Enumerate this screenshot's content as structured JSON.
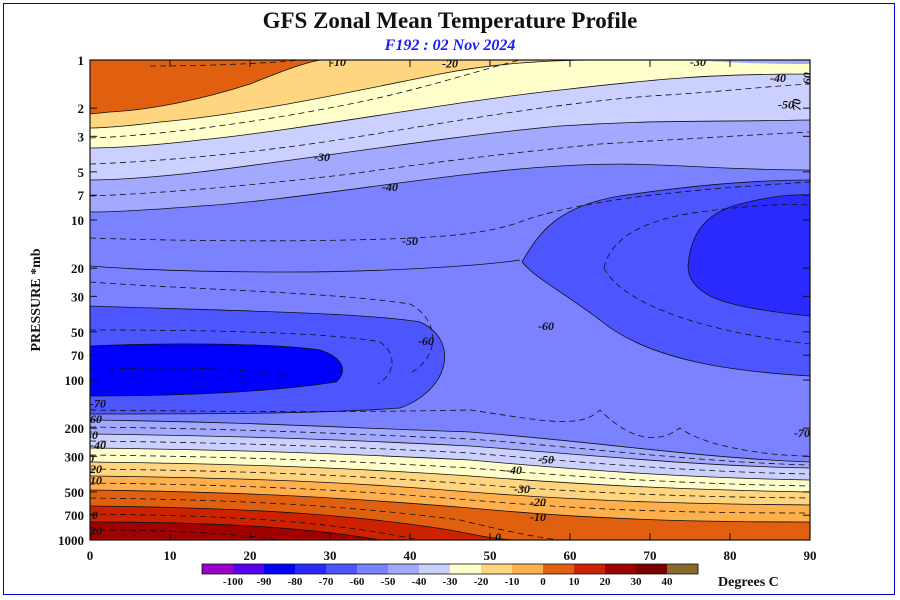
{
  "header": {
    "title": "GFS Zonal Mean Temperature Profile",
    "subtitle": "F192 : 02 Nov 2024"
  },
  "chart_data": {
    "type": "contour",
    "title": "GFS Zonal Mean Temperature Profile",
    "subtitle": "F192 : 02 Nov 2024",
    "xlabel": "",
    "ylabel": "PRESSURE *mb",
    "xlim": [
      0,
      90
    ],
    "ylim": [
      1000,
      1
    ],
    "y_scale": "log",
    "x_ticks": [
      "0",
      "10",
      "20",
      "30",
      "40",
      "50",
      "60",
      "70",
      "80",
      "90"
    ],
    "y_ticks": [
      {
        "p": 1,
        "label": "1"
      },
      {
        "p": 2,
        "label": "2"
      },
      {
        "p": 3,
        "label": "3"
      },
      {
        "p": 5,
        "label": "5"
      },
      {
        "p": 7,
        "label": "7"
      },
      {
        "p": 10,
        "label": "10"
      },
      {
        "p": 20,
        "label": "20"
      },
      {
        "p": 30,
        "label": "30"
      },
      {
        "p": 50,
        "label": "50"
      },
      {
        "p": 70,
        "label": "70"
      },
      {
        "p": 100,
        "label": "100"
      },
      {
        "p": 200,
        "label": "200"
      },
      {
        "p": 300,
        "label": "300"
      },
      {
        "p": 500,
        "label": "500"
      },
      {
        "p": 700,
        "label": "700"
      },
      {
        "p": 1000,
        "label": "1000"
      }
    ],
    "colorbar": {
      "units": "Degrees C",
      "labels": [
        "-100",
        "-90",
        "-80",
        "-70",
        "-60",
        "-50",
        "-40",
        "-30",
        "-20",
        "-10",
        "0",
        "10",
        "20",
        "30",
        "40"
      ],
      "colors": [
        "#9900cc",
        "#5500ee",
        "#0000ff",
        "#2a2aff",
        "#4d55ff",
        "#7a82ff",
        "#a3a9ff",
        "#ccd0ff",
        "#ffffcc",
        "#ffd580",
        "#ffb04d",
        "#e06010",
        "#cc2200",
        "#a00000",
        "#7a0000",
        "#8a6a2a"
      ]
    },
    "contour_labels": [
      {
        "text": "-10",
        "lat": 31,
        "p": 1.03
      },
      {
        "text": "-20",
        "lat": 45,
        "p": 1.05
      },
      {
        "text": "-30",
        "lat": 76,
        "p": 1.03
      },
      {
        "text": "-40",
        "lat": 86,
        "p": 1.3
      },
      {
        "text": "-50",
        "lat": 87,
        "p": 1.9
      },
      {
        "text": "70",
        "lat": 88.3,
        "p": 1.9
      },
      {
        "text": "60",
        "lat": 89.6,
        "p": 1.3
      },
      {
        "text": "-30",
        "lat": 29,
        "p": 4.05
      },
      {
        "text": "-40",
        "lat": 37.5,
        "p": 6.2
      },
      {
        "text": "-50",
        "lat": 40,
        "p": 13.5
      },
      {
        "text": "-60",
        "lat": 42,
        "p": 57
      },
      {
        "text": "-60",
        "lat": 57,
        "p": 46
      },
      {
        "text": "-70",
        "lat": 1,
        "p": 140
      },
      {
        "text": "-60",
        "lat": 0.5,
        "p": 175
      },
      {
        "text": "-50",
        "lat": 0,
        "p": 220
      },
      {
        "text": "-40",
        "lat": 1,
        "p": 255
      },
      {
        "text": "-30",
        "lat": -0.5,
        "p": 310
      },
      {
        "text": "-20",
        "lat": 0.5,
        "p": 360
      },
      {
        "text": "-10",
        "lat": 0.5,
        "p": 425
      },
      {
        "text": "0",
        "lat": -1,
        "p": 540
      },
      {
        "text": "-10",
        "lat": 0,
        "p": 700
      },
      {
        "text": "-20",
        "lat": 0.5,
        "p": 870
      },
      {
        "text": "-70",
        "lat": 89,
        "p": 215
      },
      {
        "text": "-50",
        "lat": 57,
        "p": 315
      },
      {
        "text": "-40",
        "lat": 53,
        "p": 365
      },
      {
        "text": "-30",
        "lat": 54,
        "p": 480
      },
      {
        "text": "-20",
        "lat": 56,
        "p": 580
      },
      {
        "text": "-10",
        "lat": 56,
        "p": 720
      },
      {
        "text": "0",
        "lat": 51,
        "p": 960
      }
    ]
  }
}
